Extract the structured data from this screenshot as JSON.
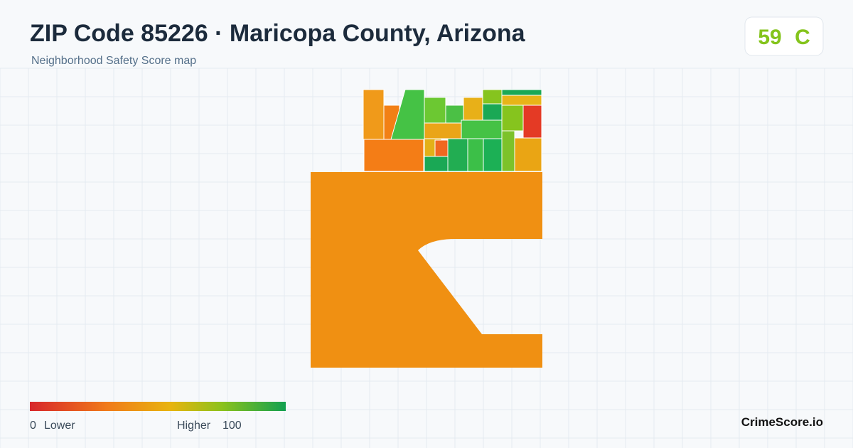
{
  "header": {
    "title": "ZIP Code 85226 · Maricopa County, Arizona",
    "subtitle": "Neighborhood Safety Score map"
  },
  "score": {
    "value": "59",
    "grade": "C"
  },
  "legend": {
    "min": "0",
    "min_label": "Lower",
    "max_label": "Higher",
    "max": "100"
  },
  "brand": "CrimeScore.io"
}
